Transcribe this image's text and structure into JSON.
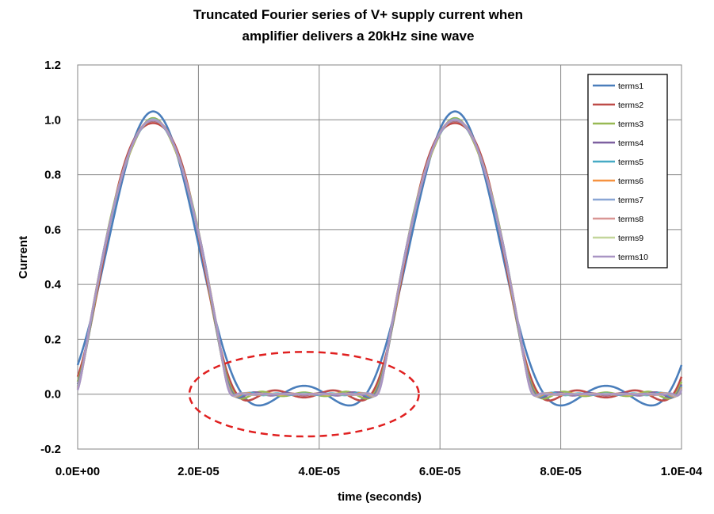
{
  "chart_data": {
    "type": "line",
    "title_lines": [
      "Truncated Fourier series of V+ supply current when",
      "amplifier delivers a 20kHz sine wave"
    ],
    "xlabel": "time (seconds)",
    "ylabel": "Current",
    "xlim": [
      0,
      0.0001
    ],
    "ylim": [
      -0.2,
      1.2
    ],
    "x_ticks": [
      0,
      2e-05,
      4e-05,
      6e-05,
      8e-05,
      0.0001
    ],
    "x_tick_labels": [
      "0.0E+00",
      "2.0E-05",
      "4.0E-05",
      "6.0E-05",
      "8.0E-05",
      "1.0E-04"
    ],
    "y_ticks": [
      -0.2,
      0.0,
      0.2,
      0.4,
      0.6,
      0.8,
      1.0,
      1.2
    ],
    "y_tick_labels": [
      "-0.2",
      "0.0",
      "0.2",
      "0.4",
      "0.6",
      "0.8",
      "1.0",
      "1.2"
    ],
    "grid": true,
    "legend_position": "top-right",
    "signal_frequency_hz": 20000,
    "series": [
      {
        "name": "terms1",
        "color": "#4a7ebb"
      },
      {
        "name": "terms2",
        "color": "#be4b48"
      },
      {
        "name": "terms3",
        "color": "#98b954"
      },
      {
        "name": "terms4",
        "color": "#7d60a0"
      },
      {
        "name": "terms5",
        "color": "#46aac5"
      },
      {
        "name": "terms6",
        "color": "#f69240"
      },
      {
        "name": "terms7",
        "color": "#8aa6d5"
      },
      {
        "name": "terms8",
        "color": "#d99694"
      },
      {
        "name": "terms9",
        "color": "#c3d69b"
      },
      {
        "name": "terms10",
        "color": "#a995c4"
      }
    ],
    "annotation": {
      "shape": "dashed-ellipse",
      "color": "#e02020",
      "center": [
        3.75e-05,
        0.0
      ],
      "radius_x": 1.9e-05,
      "radius_y": 0.154
    }
  }
}
